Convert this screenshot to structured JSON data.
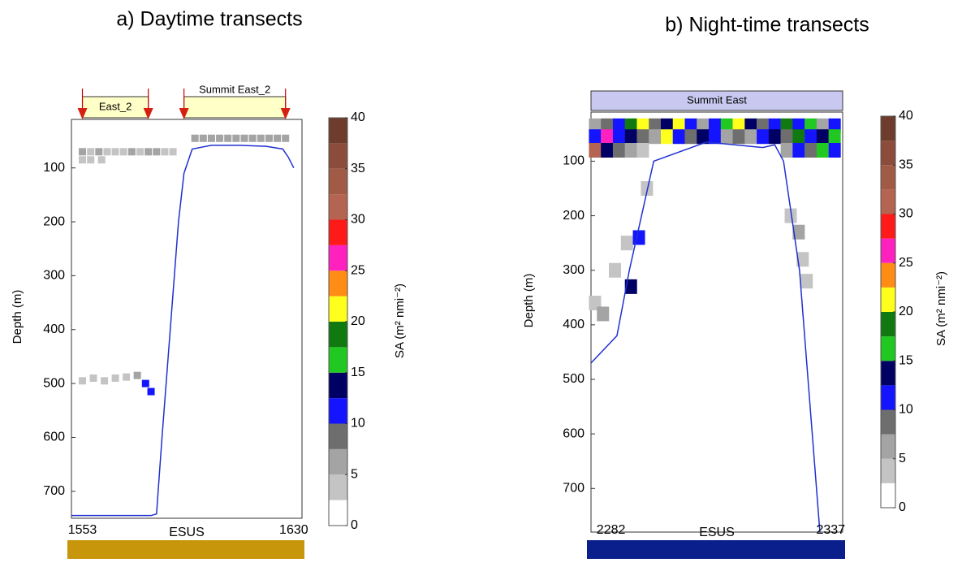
{
  "chart_data": [
    {
      "type": "echogram",
      "title": "a) Daytime transects",
      "ylabel": "Depth (m)",
      "xlabel": "ESUS",
      "ylim": [
        10,
        750
      ],
      "yticks": [
        100,
        200,
        300,
        400,
        500,
        600,
        700
      ],
      "xlim": [
        1549,
        1633
      ],
      "xticks": [
        1553,
        1630
      ],
      "region_style": "arrows",
      "region_color": "#ffffc8",
      "regions": [
        {
          "label": "East_2",
          "start": 1553,
          "end": 1577
        },
        {
          "label": "Summit East_2",
          "start": 1590,
          "end": 1627
        }
      ],
      "esus_bar_color": "#c8960a",
      "bathymetry": {
        "color": "#2030d0",
        "x": [
          1549,
          1560,
          1570,
          1578,
          1580,
          1582,
          1585,
          1588,
          1590,
          1593,
          1600,
          1610,
          1620,
          1626,
          1628,
          1630
        ],
        "depth": [
          745,
          745,
          745,
          745,
          742,
          600,
          400,
          200,
          110,
          65,
          58,
          58,
          60,
          65,
          80,
          100
        ]
      },
      "cells": {
        "x": [
          1553,
          1556,
          1559,
          1562,
          1565,
          1568,
          1571,
          1574,
          1577,
          1580,
          1583,
          1586,
          1553,
          1556,
          1560,
          1594,
          1597,
          1600,
          1603,
          1606,
          1609,
          1612,
          1615,
          1618,
          1621,
          1624,
          1627,
          1553,
          1557,
          1561,
          1565,
          1569,
          1573,
          1576,
          1578
        ],
        "depth": [
          70,
          70,
          70,
          70,
          70,
          70,
          70,
          70,
          70,
          70,
          70,
          70,
          85,
          85,
          85,
          45,
          45,
          45,
          45,
          45,
          45,
          45,
          45,
          45,
          45,
          45,
          45,
          495,
          490,
          495,
          490,
          488,
          485,
          500,
          515
        ],
        "values": [
          5,
          4,
          6,
          4,
          3,
          4,
          5,
          4,
          5,
          6,
          3,
          4,
          4,
          3,
          4,
          6,
          7,
          5,
          6,
          7,
          6,
          5,
          6,
          7,
          5,
          6,
          5,
          4,
          3,
          4,
          3,
          4,
          5,
          11,
          12
        ]
      },
      "colorbar": {
        "label": "SA (m² nmi⁻²)",
        "ticks": [
          0,
          5,
          10,
          15,
          20,
          25,
          30,
          35,
          40
        ],
        "levels": [
          0,
          2.5,
          5,
          7.5,
          10,
          12.5,
          15,
          17.5,
          20,
          22.5,
          25,
          27.5,
          30,
          32.5,
          35,
          37.5,
          40
        ],
        "colors": [
          "#ffffff",
          "#c4c4c4",
          "#a4a4a4",
          "#6e6e6e",
          "#1414ff",
          "#000064",
          "#22c822",
          "#107a10",
          "#ffff1e",
          "#ff8c14",
          "#ff20c0",
          "#ff1a1a",
          "#b46450",
          "#a05a46",
          "#8c4c3c",
          "#6e3c2c"
        ]
      }
    },
    {
      "type": "echogram",
      "title": "b) Night-time transects",
      "ylabel": "Depth (m)",
      "xlabel": "ESUS",
      "ylim": [
        10,
        780
      ],
      "yticks": [
        100,
        200,
        300,
        400,
        500,
        600,
        700
      ],
      "xlim": [
        2277,
        2340
      ],
      "xticks": [
        2282,
        2337
      ],
      "region_style": "bar",
      "region_color": "#c8c8f0",
      "regions": [
        {
          "label": "Summit East",
          "start": 2277,
          "end": 2340
        }
      ],
      "esus_bar_color": "#0a1e8c",
      "bathymetry": {
        "color": "#2030d0",
        "x": [
          2277,
          2283.5,
          2286.6,
          2292.7,
          2305.9,
          2320,
          2323,
          2325.2,
          2329.2,
          2334.3
        ],
        "depth": [
          470,
          420,
          300,
          100,
          65,
          75,
          70,
          100,
          300,
          780
        ]
      },
      "cells": {
        "x": [
          2278,
          2281,
          2284,
          2287,
          2290,
          2293,
          2296,
          2299,
          2302,
          2305,
          2308,
          2311,
          2314,
          2317,
          2320,
          2323,
          2326,
          2329,
          2332,
          2335,
          2338,
          2278,
          2281,
          2284,
          2287,
          2290,
          2293,
          2296,
          2299,
          2302,
          2305,
          2308,
          2311,
          2314,
          2317,
          2320,
          2323,
          2326,
          2329,
          2332,
          2335,
          2338,
          2278,
          2281,
          2284,
          2287,
          2290,
          2326,
          2329,
          2332,
          2335,
          2338,
          2278,
          2280,
          2283,
          2286,
          2289,
          2287,
          2291,
          2327,
          2329,
          2330,
          2331
        ],
        "depth": [
          35,
          35,
          35,
          35,
          35,
          35,
          35,
          35,
          35,
          35,
          35,
          35,
          35,
          35,
          35,
          35,
          35,
          35,
          35,
          35,
          35,
          55,
          55,
          55,
          55,
          55,
          55,
          55,
          55,
          55,
          55,
          55,
          55,
          55,
          55,
          55,
          55,
          55,
          55,
          55,
          55,
          55,
          80,
          80,
          80,
          80,
          80,
          80,
          80,
          80,
          80,
          80,
          360,
          380,
          300,
          250,
          240,
          330,
          150,
          200,
          230,
          280,
          320
        ],
        "values": [
          6,
          9,
          12,
          18,
          22,
          9,
          13,
          20,
          11,
          7,
          12,
          17,
          22,
          13,
          8,
          11,
          19,
          12,
          16,
          7,
          10,
          12,
          25,
          11,
          14,
          9,
          6,
          20,
          12,
          8,
          13,
          10,
          7,
          9,
          6,
          12,
          14,
          8,
          18,
          11,
          13,
          15,
          32,
          14,
          9,
          5,
          4,
          6,
          12,
          9,
          17,
          11,
          4,
          5,
          4,
          3,
          11,
          13,
          4,
          4,
          5,
          4,
          3
        ]
      },
      "colorbar": {
        "label": "SA (m² nmi⁻²)",
        "ticks": [
          0,
          5,
          10,
          15,
          20,
          25,
          30,
          35,
          40
        ],
        "levels": [
          0,
          2.5,
          5,
          7.5,
          10,
          12.5,
          15,
          17.5,
          20,
          22.5,
          25,
          27.5,
          30,
          32.5,
          35,
          37.5,
          40
        ],
        "colors": [
          "#ffffff",
          "#c4c4c4",
          "#a4a4a4",
          "#6e6e6e",
          "#1414ff",
          "#000064",
          "#22c822",
          "#107a10",
          "#ffff1e",
          "#ff8c14",
          "#ff20c0",
          "#ff1a1a",
          "#b46450",
          "#a05a46",
          "#8c4c3c",
          "#6e3c2c"
        ]
      }
    }
  ]
}
